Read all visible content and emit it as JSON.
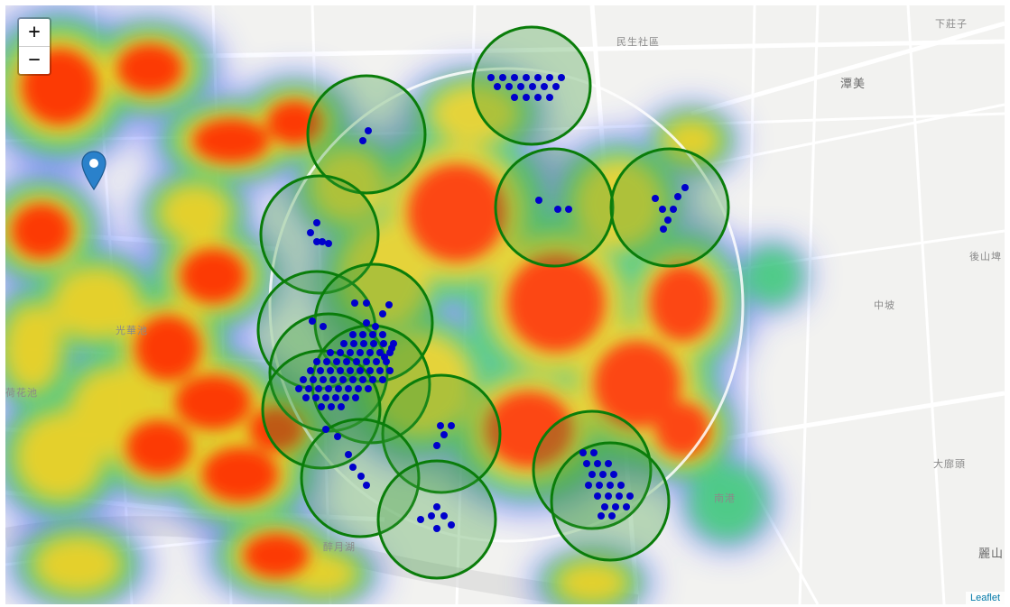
{
  "map": {
    "attribution": "Leaflet",
    "zoom_in_label": "+",
    "zoom_out_label": "−",
    "labels": [
      {
        "id": "label-minsheng",
        "text": "民生社區"
      },
      {
        "id": "label-tanmei",
        "text": "潭美"
      },
      {
        "id": "label-guangfuchi",
        "text": "光華池"
      },
      {
        "id": "label-hehuachi",
        "text": "荷花池"
      },
      {
        "id": "label-zhongpo",
        "text": "中坡"
      },
      {
        "id": "label-dakeng",
        "text": "大廍頭"
      },
      {
        "id": "label-xiazhuang",
        "text": "下莊子"
      },
      {
        "id": "label-houshan",
        "text": "後山埤"
      },
      {
        "id": "label-liyan",
        "text": "麗山"
      },
      {
        "id": "label-zuiyuehu",
        "text": "醉月湖"
      },
      {
        "id": "label-nangang",
        "text": "南港"
      }
    ],
    "colors": {
      "heat_low": "#3b4bff",
      "heat_mid": "#35e05a",
      "heat_high": "#ff2a00",
      "cluster_stroke": "#0a7d0a",
      "cluster_fill": "#3a9a3a",
      "point": "#0000cc",
      "ring": "#ffffff",
      "marker": "#2a81cb"
    },
    "icons": [
      "map-marker-icon"
    ]
  }
}
